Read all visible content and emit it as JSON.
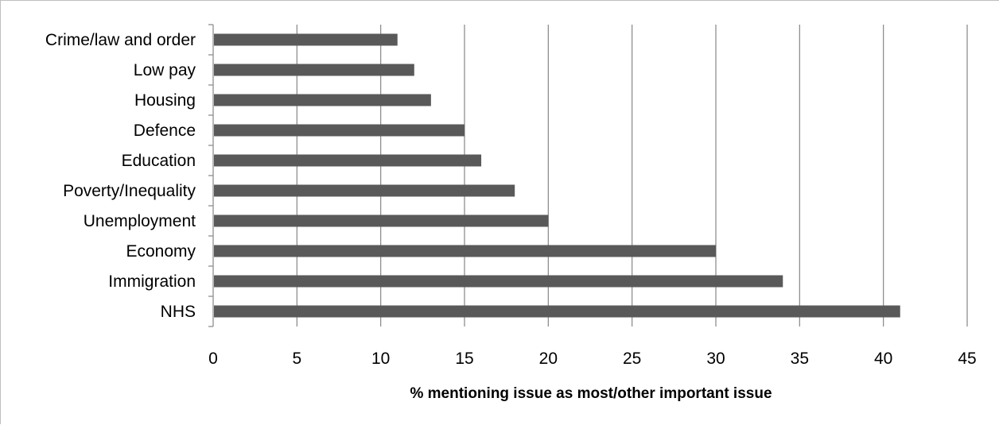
{
  "chart_data": {
    "type": "bar",
    "orientation": "horizontal",
    "categories": [
      "NHS",
      "Immigration",
      "Economy",
      "Unemployment",
      "Poverty/Inequality",
      "Education",
      "Defence",
      "Housing",
      "Low pay",
      "Crime/law and order"
    ],
    "values": [
      41,
      34,
      30,
      20,
      18,
      16,
      15,
      13,
      12,
      11
    ],
    "xlabel": "% mentioning issue as most/other important issue",
    "ylabel": "",
    "xlim": [
      0,
      45
    ],
    "xticks": [
      0,
      5,
      10,
      15,
      20,
      25,
      30,
      35,
      40,
      45
    ],
    "grid": "vertical",
    "legend": "none",
    "bar_color": "#595959",
    "grid_color": "#868686"
  }
}
